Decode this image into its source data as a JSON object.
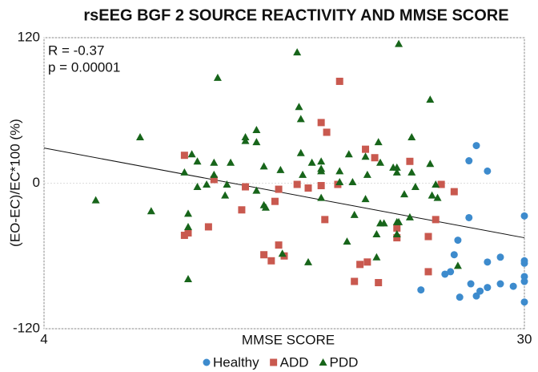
{
  "chart_data": {
    "type": "scatter",
    "title": "rsEEG BGF 2 SOURCE REACTIVITY AND MMSE SCORE",
    "xlabel": "MMSE SCORE",
    "ylabel": "(EO-EC)/EC*100 (%)",
    "annotations": [
      "R = -0.37",
      "p = 0.00001"
    ],
    "xlim": [
      4,
      30
    ],
    "xticks": [
      4,
      30
    ],
    "ylim": [
      -120,
      120
    ],
    "yticks": [
      -120,
      0,
      120
    ],
    "grid": true,
    "legend": "bottom",
    "trend_line": {
      "color": "#111111",
      "x": [
        4,
        30
      ],
      "y": [
        29,
        -45
      ]
    },
    "series": [
      {
        "name": "Healthy",
        "color": "#3d8bcd",
        "marker": "circle",
        "x": [
          27.4,
          27.0,
          28.0,
          27.0,
          26.4,
          26.2,
          26.0,
          25.7,
          24.4,
          26.5,
          27.1,
          27.4,
          27.6,
          28.0,
          28.0,
          28.7,
          28.7,
          30,
          30,
          30,
          30,
          30,
          30,
          29.4
        ],
        "y": [
          31,
          18.5,
          10,
          -28.4,
          -47,
          -59,
          -73,
          -75,
          -88,
          -94,
          -83,
          -93,
          -89,
          -86,
          -65,
          -61,
          -83,
          -27,
          -64,
          -66,
          -77,
          -81,
          -98,
          -85
        ]
      },
      {
        "name": "ADD",
        "color": "#c9594f",
        "marker": "square",
        "x": [
          11.6,
          11.8,
          11.6,
          12.9,
          13.2,
          14.7,
          14.9,
          15.9,
          16.3,
          16.7,
          16.5,
          17.0,
          16.7,
          17.7,
          18.3,
          19.0,
          19.3,
          19.0,
          19.2,
          20.0,
          19.9,
          20.8,
          21.1,
          21.5,
          22.1,
          21.4,
          21.9,
          23.1,
          23.1,
          23.8,
          24.8,
          25.2,
          25.5,
          26.2,
          24.8
        ],
        "y": [
          23,
          -41,
          -43,
          -36,
          3,
          -22,
          -3,
          -59,
          -64,
          -5,
          -15,
          -60,
          -51,
          -1,
          -4,
          50,
          42,
          -2,
          -30,
          84,
          -1,
          -81,
          -67,
          -65,
          -82,
          28,
          21,
          -37,
          -45,
          18,
          -44,
          -30,
          -1,
          -7,
          -73
        ]
      },
      {
        "name": "PDD",
        "color": "#17651a",
        "marker": "triangle",
        "x": [
          6.8,
          9.2,
          9.8,
          11.6,
          12.0,
          12.3,
          12.3,
          11.8,
          11.8,
          11.8,
          12.8,
          13.4,
          13.2,
          13.2,
          13.9,
          13.8,
          14.1,
          14.9,
          14.9,
          15.5,
          15.5,
          15.9,
          15.5,
          15.9,
          16.0,
          16.8,
          17.7,
          17.8,
          17.9,
          17.9,
          18.0,
          16.9,
          18.3,
          18.5,
          19.0,
          19.0,
          19.0,
          19.0,
          20.0,
          20.0,
          20.5,
          20.4,
          20.7,
          20.8,
          21.4,
          21.5,
          21.4,
          22.1,
          22.2,
          22.2,
          22.0,
          22.0,
          22.4,
          22.9,
          23.1,
          23.2,
          23.1,
          23.2,
          23.5,
          23.9,
          23.9,
          23.8,
          24.1,
          24.9,
          24.9,
          25.0,
          25.2,
          25.3,
          26.4,
          23.1,
          23.1
        ],
        "y": [
          -14,
          38,
          -23,
          9,
          24,
          18,
          -3,
          -25,
          -36,
          -79,
          -1,
          87,
          17,
          7,
          -1,
          -10,
          17,
          38,
          35,
          44,
          34,
          14,
          -6,
          -18,
          -20,
          11,
          108,
          63,
          53,
          25,
          7,
          -58,
          -65,
          17,
          18,
          12,
          10,
          -12,
          10,
          1,
          24,
          -48,
          1,
          -26,
          22,
          7,
          -13,
          34,
          17,
          -33,
          -42,
          -61,
          -33,
          13,
          9,
          115,
          13,
          -32,
          -9,
          38,
          9,
          -28,
          -3,
          69,
          16,
          -10,
          -1,
          -12,
          -68,
          -32,
          -42
        ]
      }
    ]
  }
}
